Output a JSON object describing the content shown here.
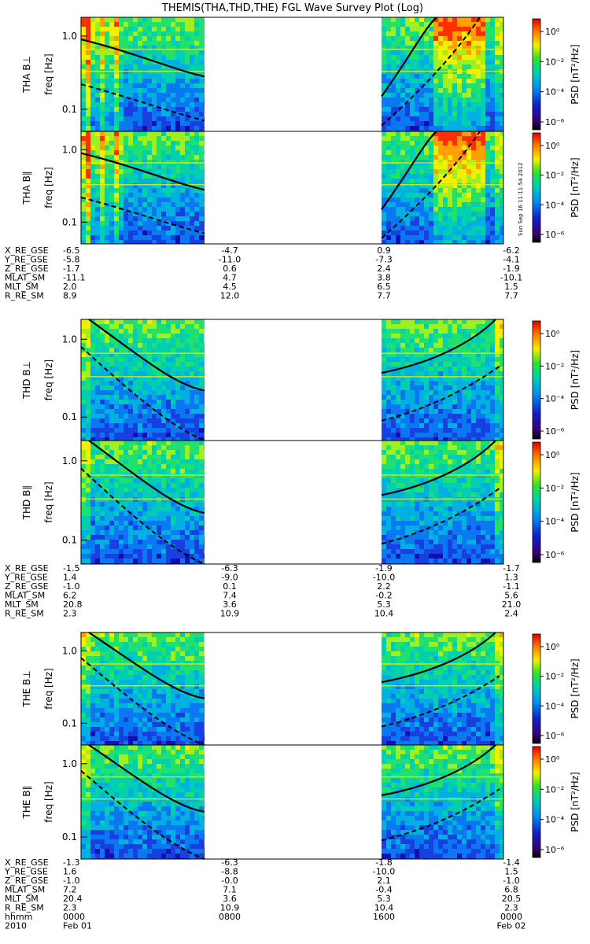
{
  "title": "THEMIS(THA,THD,THE) FGL Wave Survey Plot (Log)",
  "stamp": "Sun Sep 16 11:11:54 2012",
  "colorbar": {
    "label": "PSD [nT²/Hz]",
    "ticks": [
      "10⁰",
      "10⁻²",
      "10⁻⁴",
      "10⁻⁶"
    ]
  },
  "chart_data": {
    "type": "heatmap",
    "scale": "log",
    "ylabel": "freq [Hz]",
    "y_ticks": [
      "1.0",
      "0.1"
    ],
    "y_tick_values": [
      1.0,
      0.1
    ],
    "ylim": [
      0.05,
      1.8
    ],
    "x_time_hours": [
      0,
      8,
      16,
      24
    ],
    "data_gaps_hours": [
      [
        6.3,
        14.8
      ]
    ],
    "panels": [
      {
        "label": "THA B⊥",
        "probe": "THA",
        "component": "perp"
      },
      {
        "label": "THA B∥",
        "probe": "THA",
        "component": "par"
      },
      {
        "label": "THD B⊥",
        "probe": "THD",
        "component": "perp"
      },
      {
        "label": "THD B∥",
        "probe": "THD",
        "component": "par"
      },
      {
        "label": "THE B⊥",
        "probe": "THE",
        "component": "perp"
      },
      {
        "label": "THE B∥",
        "probe": "THE",
        "component": "par"
      }
    ]
  },
  "ephemeris": [
    {
      "labels": [
        "X_RE_GSE",
        "Y_RE_GSE",
        "Z_RE_GSE",
        "MLAT_SM",
        "MLT_SM",
        "R_RE_SM"
      ],
      "columns": [
        [
          "-6.5",
          "-5.8",
          "-1.7",
          "-11.1",
          "2.0",
          "8.9"
        ],
        [
          "-4.7",
          "-11.0",
          "0.6",
          "4.7",
          "4.5",
          "12.0"
        ],
        [
          "0.9",
          "-7.3",
          "2.4",
          "3.8",
          "6.5",
          "7.7"
        ],
        [
          "-6.2",
          "-4.1",
          "-1.9",
          "-10.1",
          "1.5",
          "7.7"
        ]
      ]
    },
    {
      "labels": [
        "X_RE_GSE",
        "Y_RE_GSE",
        "Z_RE_GSE",
        "MLAT_SM",
        "MLT_SM",
        "R_RE_SM"
      ],
      "columns": [
        [
          "-1.5",
          "1.4",
          "-1.0",
          "6.2",
          "20.8",
          "2.3"
        ],
        [
          "-6.3",
          "-9.0",
          "0.1",
          "7.4",
          "3.6",
          "10.9"
        ],
        [
          "-1.9",
          "-10.0",
          "2.2",
          "-0.2",
          "5.3",
          "10.4"
        ],
        [
          "-1.7",
          "1.3",
          "-1.1",
          "5.6",
          "21.0",
          "2.4"
        ]
      ]
    },
    {
      "labels": [
        "X_RE_GSE",
        "Y_RE_GSE",
        "Z_RE_GSE",
        "MLAT_SM",
        "MLT_SM",
        "R_RE_SM",
        "hhmm",
        "2010"
      ],
      "columns": [
        [
          "-1.3",
          "1.6",
          "-1.0",
          "7.2",
          "20.4",
          "2.3",
          "0000",
          "Feb 01"
        ],
        [
          "-6.3",
          "-8.8",
          "-0.0",
          "7.1",
          "3.6",
          "10.9",
          "0800",
          ""
        ],
        [
          "-1.8",
          "-10.0",
          "2.1",
          "-0.4",
          "5.3",
          "10.4",
          "1600",
          ""
        ],
        [
          "-1.4",
          "1.5",
          "-1.0",
          "6.8",
          "20.5",
          "2.3",
          "0000",
          "Feb 02"
        ]
      ]
    }
  ]
}
